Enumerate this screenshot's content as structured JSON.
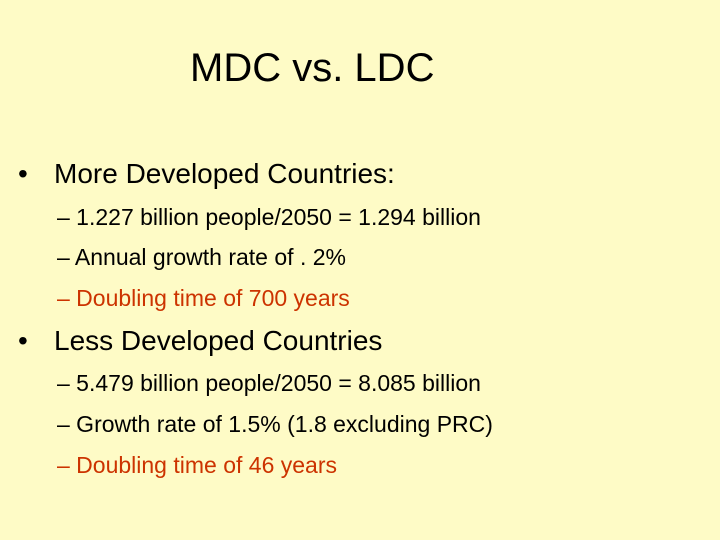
{
  "slide": {
    "title": "MDC vs. LDC",
    "colors": {
      "background": "#fefbc6",
      "text": "#000000",
      "accent": "#cc3300"
    },
    "sections": [
      {
        "bullet": "•",
        "heading": "More Developed Countries:",
        "items": [
          "– 1.227 billion people/2050 = 1.294 billion",
          "–  Annual growth rate of . 2%",
          "–  Doubling time of 700 years"
        ]
      },
      {
        "bullet": "•",
        "heading": "Less Developed Countries",
        "items": [
          "–  5.479 billion people/2050 = 8.085 billion",
          "– Growth rate of 1.5% (1.8 excluding PRC)",
          "– Doubling time of 46 years"
        ]
      }
    ]
  }
}
